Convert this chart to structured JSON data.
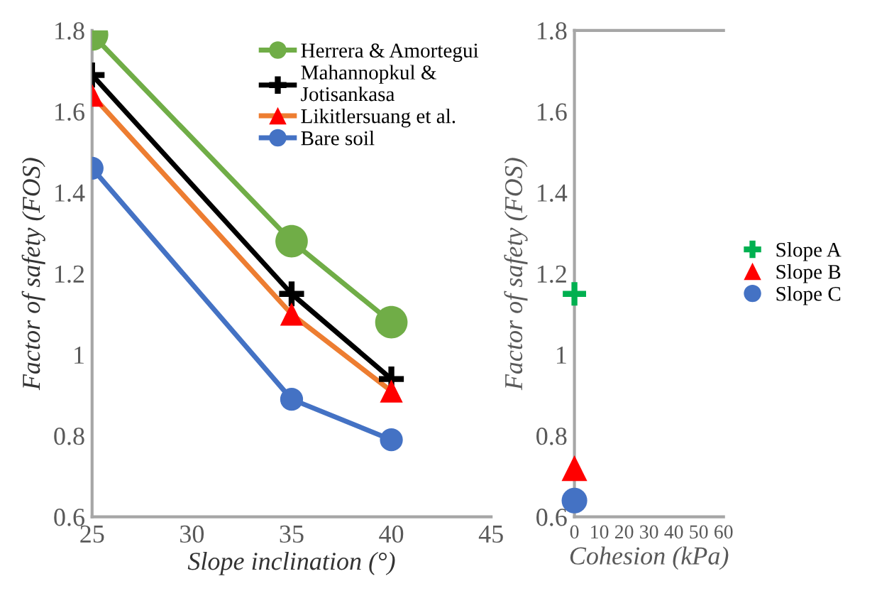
{
  "chart_data": [
    {
      "type": "line",
      "xlabel": "Slope inclination (°)",
      "ylabel": "Factor of safety (FOS)",
      "x": [
        25,
        35,
        40
      ],
      "xlim": [
        25,
        45
      ],
      "xticks": [
        25,
        30,
        35,
        40,
        45
      ],
      "ylim": [
        0.6,
        1.8
      ],
      "yticks": [
        0.6,
        0.8,
        1,
        1.2,
        1.4,
        1.6,
        1.8
      ],
      "grid": false,
      "legend": "top right",
      "line_style": "solid",
      "series": [
        {
          "name": "Herrera & Amortegui",
          "color": "#70ad47",
          "marker": "circle",
          "values": [
            1.79,
            1.28,
            1.08
          ]
        },
        {
          "name": "Mahannopkul & Jotisankasa",
          "color": "#000000",
          "marker": "cross",
          "values": [
            1.69,
            1.15,
            0.94
          ]
        },
        {
          "name": "Likitlersuang et al.",
          "color": "#ed7d31",
          "colors": [
            "#ff0000",
            "#ff0000",
            "#ff0000"
          ],
          "marker": "triangle",
          "values": [
            1.64,
            1.1,
            0.91
          ]
        },
        {
          "name": "Bare soil",
          "color": "#4472c4",
          "marker": "circle",
          "values": [
            1.46,
            0.89,
            0.79
          ]
        }
      ]
    },
    {
      "type": "scatter",
      "xlabel": "Cohesion (kPa)",
      "ylabel": "Factor of safety (FOS)",
      "x": [
        0
      ],
      "xlim": [
        0,
        60
      ],
      "xticks": [
        0,
        10,
        20,
        30,
        40,
        50,
        60
      ],
      "ylim": [
        0.6,
        1.8
      ],
      "yticks": [
        0.6,
        0.8,
        1,
        1.2,
        1.4,
        1.6,
        1.8
      ],
      "grid": false,
      "legend": "right",
      "series": [
        {
          "name": "Slope A",
          "color": "#00b050",
          "marker": "cross",
          "values": [
            1.15
          ]
        },
        {
          "name": "Slope B",
          "color": "#ff0000",
          "marker": "triangle",
          "values": [
            0.72
          ]
        },
        {
          "name": "Slope C",
          "color": "#4472c4",
          "marker": "circle",
          "values": [
            0.64
          ]
        }
      ]
    }
  ]
}
